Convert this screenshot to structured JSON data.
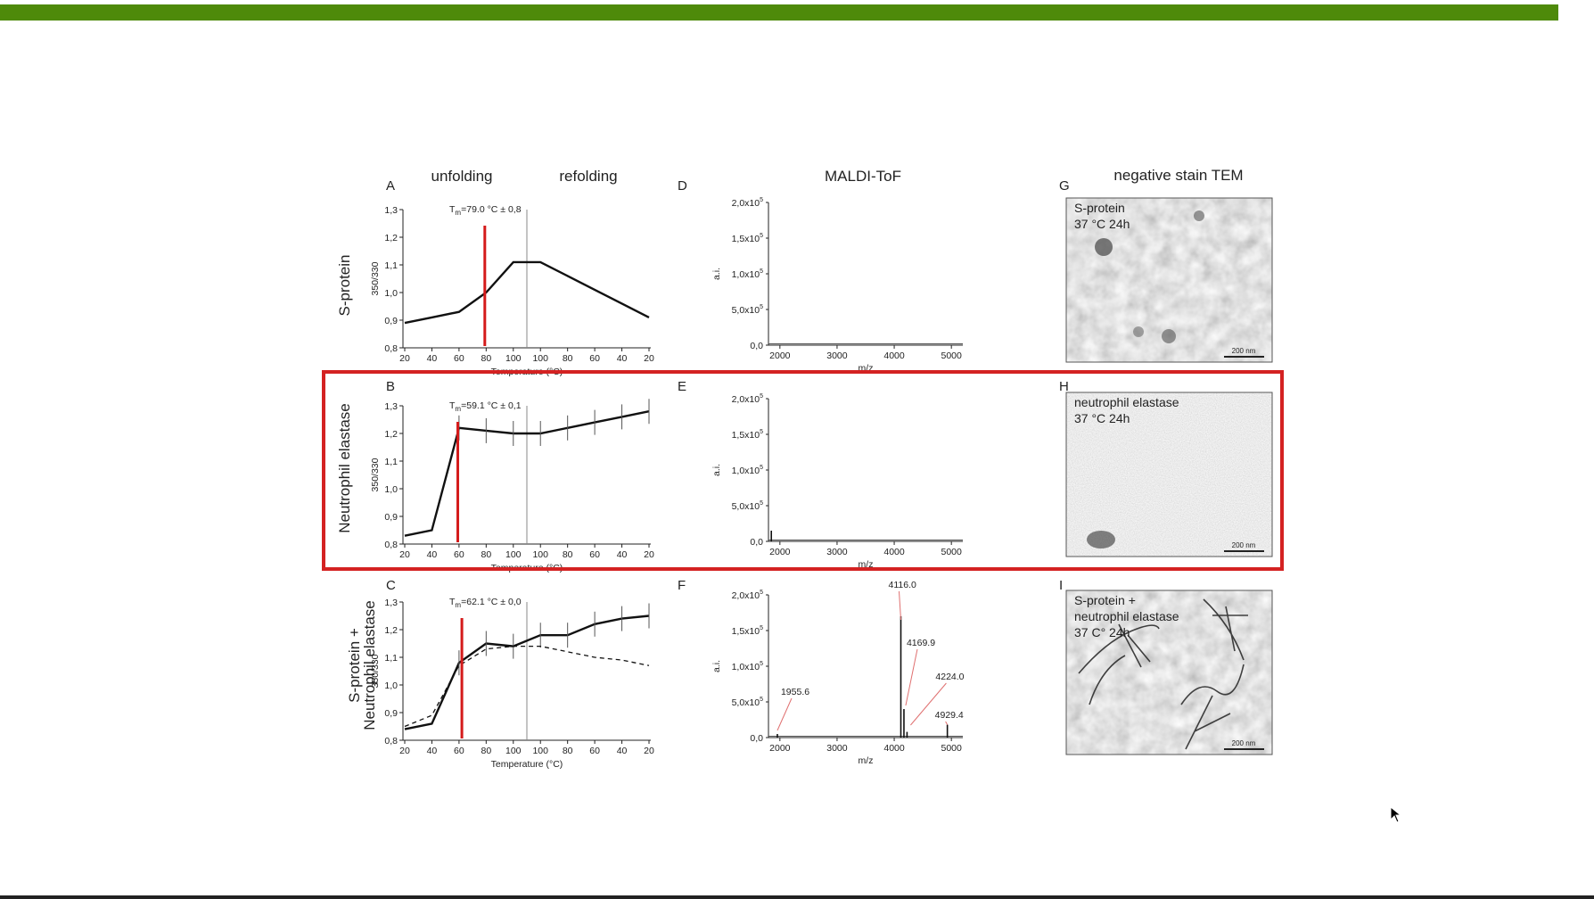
{
  "colors": {
    "topbar": "#4e8a0a",
    "highlight": "#d42222",
    "tm_line": "#d41a1a"
  },
  "headers": {
    "unfolding": "unfolding",
    "refolding": "refolding",
    "maldi": "MALDI-ToF",
    "tem": "negative stain TEM"
  },
  "row_labels": {
    "a": [
      "S-protein"
    ],
    "b": [
      "Neutrophil elastase"
    ],
    "c": [
      "S-protein +",
      "Neutrophil elastase"
    ]
  },
  "panel_letters": [
    "A",
    "B",
    "C",
    "D",
    "E",
    "F",
    "G",
    "H",
    "I"
  ],
  "tm": {
    "a": "79.0 °C ± 0,8",
    "b": "59.1 °C ± 0,1",
    "c": "62.1 °C ± 0,0"
  },
  "tm_prefix": "T",
  "tm_sub": "m",
  "tm_eq": "=",
  "unfold": {
    "ylabel": "350/330",
    "xlabel": "Temperature (°C)",
    "yticks": [
      "0,8",
      "0,9",
      "1,0",
      "1,1",
      "1,2",
      "1,3"
    ],
    "xticks": [
      "20",
      "40",
      "60",
      "80",
      "100",
      "100",
      "80",
      "60",
      "40",
      "20"
    ]
  },
  "maldi": {
    "ylabel": "a.i.",
    "xlabel": "m/z",
    "yticks": [
      "0,0",
      "5,0x10",
      "1,0x10",
      "1,5x10",
      "2,0x10"
    ],
    "yexp": "5",
    "xticks": [
      "2000",
      "3000",
      "4000",
      "5000"
    ]
  },
  "tem": {
    "g": [
      "S-protein",
      "37 °C 24h"
    ],
    "h": [
      "neutrophil elastase",
      "37 °C 24h"
    ],
    "i": [
      "S-protein +",
      "neutrophil elastase",
      "37 C° 24h"
    ],
    "scale": "200 nm"
  },
  "chart_data": [
    {
      "type": "line",
      "panel": "A",
      "ylabel": "350/330",
      "xlabel": "Temperature (°C)",
      "ylim": [
        0.8,
        1.3
      ],
      "x": [
        "20",
        "40",
        "60",
        "80",
        "100",
        "100",
        "80",
        "60",
        "40",
        "20"
      ],
      "series": [
        {
          "values": [
            0.89,
            0.91,
            0.93,
            1.0,
            1.11,
            1.11,
            1.06,
            1.01,
            0.96,
            0.91
          ]
        }
      ],
      "tm": 79.0
    },
    {
      "type": "line",
      "panel": "B",
      "ylabel": "350/330",
      "xlabel": "Temperature (°C)",
      "ylim": [
        0.8,
        1.3
      ],
      "x": [
        "20",
        "40",
        "60",
        "80",
        "100",
        "100",
        "80",
        "60",
        "40",
        "20"
      ],
      "series": [
        {
          "values": [
            0.83,
            0.85,
            1.22,
            1.21,
            1.2,
            1.2,
            1.22,
            1.24,
            1.26,
            1.28
          ]
        }
      ],
      "tm": 59.1
    },
    {
      "type": "line",
      "panel": "C",
      "ylabel": "350/330",
      "xlabel": "Temperature (°C)",
      "ylim": [
        0.8,
        1.3
      ],
      "x": [
        "20",
        "40",
        "60",
        "80",
        "100",
        "100",
        "80",
        "60",
        "40",
        "20"
      ],
      "series": [
        {
          "values": [
            0.84,
            0.86,
            1.08,
            1.15,
            1.14,
            1.18,
            1.18,
            1.22,
            1.24,
            1.25
          ]
        },
        {
          "values": [
            0.85,
            0.89,
            1.07,
            1.13,
            1.14,
            1.14,
            1.12,
            1.1,
            1.09,
            1.07
          ],
          "style": "dashed"
        }
      ],
      "tm": 62.1
    },
    {
      "type": "line",
      "panel": "D",
      "ylabel": "a.i.",
      "xlabel": "m/z",
      "xlim": [
        1800,
        5200
      ],
      "ylim": [
        0,
        200000
      ],
      "peaks": []
    },
    {
      "type": "line",
      "panel": "E",
      "ylabel": "a.i.",
      "xlabel": "m/z",
      "xlim": [
        1800,
        5200
      ],
      "ylim": [
        0,
        200000
      ],
      "peaks": [
        {
          "x": 1850,
          "y": 15000
        }
      ]
    },
    {
      "type": "line",
      "panel": "F",
      "ylabel": "a.i.",
      "xlabel": "m/z",
      "xlim": [
        1800,
        5200
      ],
      "ylim": [
        0,
        200000
      ],
      "peaks": [
        {
          "x": 1955.6,
          "y": 5000,
          "label": "1955.6"
        },
        {
          "x": 4116.0,
          "y": 170000,
          "label": "4116.0"
        },
        {
          "x": 4169.9,
          "y": 40000,
          "label": "4169.9"
        },
        {
          "x": 4224.0,
          "y": 8000,
          "label": "4224.0"
        },
        {
          "x": 4929.4,
          "y": 18000,
          "label": "4929.4"
        }
      ]
    }
  ]
}
